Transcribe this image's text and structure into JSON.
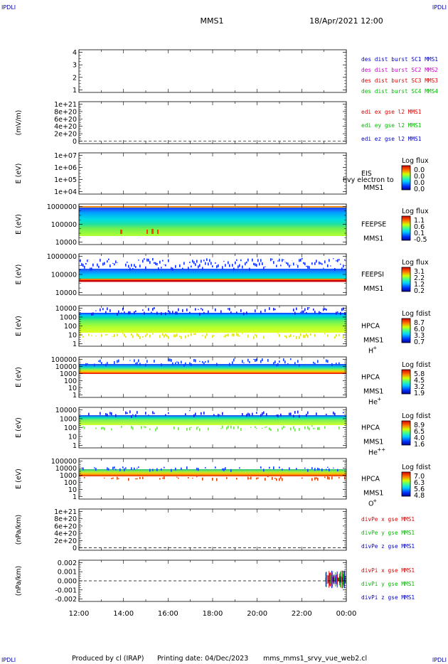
{
  "header": {
    "corner_left": "IPDLI",
    "corner_right": "IPDLI",
    "spacecraft": "MMS1",
    "datetime": "18/Apr/2021 12:00"
  },
  "footer": {
    "corner_left": "IPDLI",
    "corner_right": "IPDLI",
    "credit": "Produced by cl (IRAP)",
    "printing": "Printing date: 04/Dec/2023",
    "file": "mms_mms1_srvy_vue_web2.cl"
  },
  "chart_data": {
    "type": "multi-panel time series",
    "x_ticks": [
      "12:00",
      "14:00",
      "16:00",
      "18:00",
      "20:00",
      "22:00",
      "00:00"
    ],
    "panels": [
      {
        "id": "p1",
        "y_ticks": [
          "1",
          "2",
          "3",
          "4"
        ],
        "ylabel": "",
        "legend": [
          {
            "text": "des dist burst SC1 MMS1",
            "color": "#0000cc"
          },
          {
            "text": "des dist burst SC2 MMS2",
            "color": "#cc00cc"
          },
          {
            "text": "des dist burst SC3 MMS3",
            "color": "#dd0000"
          },
          {
            "text": "des dist burst SC4 MMS4",
            "color": "#00bb00"
          }
        ]
      },
      {
        "id": "p2",
        "y_ticks": [
          "0",
          "2e+20",
          "4e+20",
          "6e+20",
          "8e+20",
          "1e+21"
        ],
        "ylabel": "(mV/m)",
        "legend": [
          {
            "text": "edi ex gse l2 MMS1",
            "color": "#dd0000"
          },
          {
            "text": "edi ey gse l2 MMS1",
            "color": "#00bb00"
          },
          {
            "text": "edi ez gse l2 MMS1",
            "color": "#0000cc"
          }
        ]
      },
      {
        "id": "p3",
        "y_ticks": [
          "1e+04",
          "1e+05",
          "1e+06",
          "1e+07"
        ],
        "ylabel": "E (eV)",
        "instrument": "EIS",
        "instrument_extra": "hvy electron to",
        "sc": "MMS1",
        "species": "",
        "cbar": {
          "title": "Log flux",
          "ticks": [
            "0.0",
            "0.0",
            "0.0",
            "0.0"
          ]
        }
      },
      {
        "id": "p4",
        "y_ticks": [
          "10000",
          "100000",
          "1000000"
        ],
        "ylabel": "E (eV)",
        "instrument": "FEEPSE",
        "instrument_extra": "",
        "sc": "MMS1",
        "species": "",
        "cbar": {
          "title": "Log flux",
          "ticks": [
            "1.1",
            "0.6",
            "0.1",
            "-0.5"
          ]
        }
      },
      {
        "id": "p5",
        "y_ticks": [
          "10000",
          "100000",
          "1000000"
        ],
        "ylabel": "E (eV)",
        "instrument": "FEEPSI",
        "instrument_extra": "",
        "sc": "MMS1",
        "species": "",
        "cbar": {
          "title": "Log flux",
          "ticks": [
            "3.1",
            "2.2",
            "1.2",
            "0.2"
          ]
        }
      },
      {
        "id": "p6",
        "y_ticks": [
          "1",
          "10",
          "100",
          "1000",
          "10000"
        ],
        "ylabel": "E (eV)",
        "instrument": "HPCA",
        "instrument_extra": "",
        "sc": "MMS1",
        "species": "H",
        "species_sup": "+",
        "cbar": {
          "title": "Log fdist",
          "ticks": [
            "8.7",
            "6.0",
            "3.3",
            "0.7"
          ]
        }
      },
      {
        "id": "p7",
        "y_ticks": [
          "1",
          "10",
          "100",
          "1000",
          "10000",
          "100000"
        ],
        "ylabel": "E (eV)",
        "instrument": "HPCA",
        "instrument_extra": "",
        "sc": "MMS1",
        "species": "He",
        "species_sup": "+",
        "cbar": {
          "title": "Log fdist",
          "ticks": [
            "5.8",
            "4.5",
            "3.2",
            "1.9"
          ]
        }
      },
      {
        "id": "p8",
        "y_ticks": [
          "1",
          "10",
          "100",
          "1000",
          "10000"
        ],
        "ylabel": "E (eV)",
        "instrument": "HPCA",
        "instrument_extra": "",
        "sc": "MMS1",
        "species": "He",
        "species_sup": "++",
        "cbar": {
          "title": "Log fdist",
          "ticks": [
            "8.9",
            "6.5",
            "4.0",
            "1.6"
          ]
        }
      },
      {
        "id": "p9",
        "y_ticks": [
          "1",
          "10",
          "100",
          "1000",
          "10000",
          "100000"
        ],
        "ylabel": "E (eV)",
        "instrument": "HPCA",
        "instrument_extra": "",
        "sc": "MMS1",
        "species": "O",
        "species_sup": "+",
        "cbar": {
          "title": "Log fdist",
          "ticks": [
            "7.0",
            "6.3",
            "5.6",
            "4.8"
          ]
        }
      },
      {
        "id": "p10",
        "y_ticks": [
          "0",
          "2e+20",
          "4e+20",
          "6e+20",
          "8e+20",
          "1e+21"
        ],
        "ylabel": "(nPa/km)",
        "legend": [
          {
            "text": "divPe x gse MMS1",
            "color": "#dd0000"
          },
          {
            "text": "divPe y gse MMS1",
            "color": "#00bb00"
          },
          {
            "text": "divPe z gse MMS1",
            "color": "#0000cc"
          }
        ]
      },
      {
        "id": "p11",
        "y_ticks": [
          "-0.002",
          "-0.001",
          "0.000",
          "0.001",
          "0.002"
        ],
        "ylabel": "(nPa/km)",
        "legend": [
          {
            "text": "divPi x gse MMS1",
            "color": "#dd0000"
          },
          {
            "text": "divPi y gse MMS1",
            "color": "#00bb00"
          },
          {
            "text": "divPi z gse MMS1",
            "color": "#0000cc"
          }
        ]
      }
    ]
  }
}
